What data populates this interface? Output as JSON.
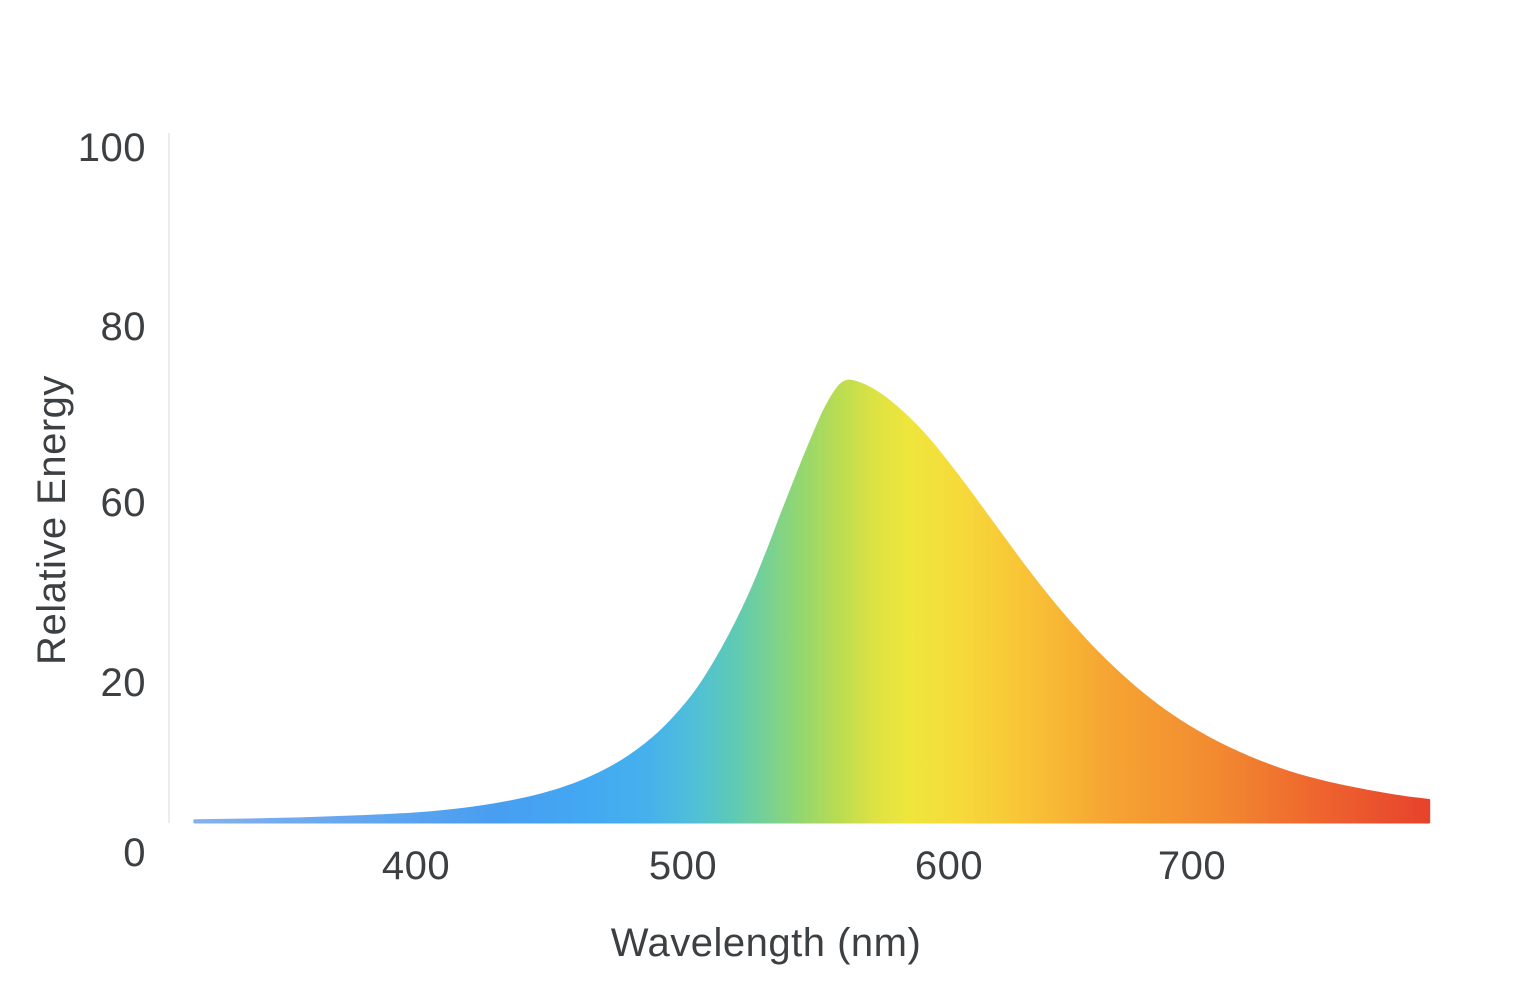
{
  "chart_data": {
    "type": "area",
    "title": "",
    "xlabel": "Wavelength (nm)",
    "ylabel": "Relative Energy",
    "x_ticks": [
      "400",
      "500",
      "600",
      "700"
    ],
    "y_ticks": [
      "100",
      "80",
      "60",
      "20",
      "0"
    ],
    "x_range_nm": [
      317,
      780
    ],
    "ylim": [
      0,
      100
    ],
    "grid": false,
    "legend": false,
    "peak": {
      "wavelength_nm": 557,
      "value": 65
    },
    "axis_line_color": "#ECECEC",
    "text_color": "#3C4043",
    "series": [
      {
        "name": "Relative Energy",
        "points": [
          [
            317,
            0.2
          ],
          [
            350,
            0.4
          ],
          [
            380,
            0.8
          ],
          [
            400,
            1.2
          ],
          [
            418,
            1.9
          ],
          [
            433,
            2.8
          ],
          [
            447,
            4.0
          ],
          [
            459,
            5.5
          ],
          [
            470,
            7.4
          ],
          [
            480,
            9.7
          ],
          [
            489,
            12.4
          ],
          [
            497,
            15.5
          ],
          [
            505,
            19.3
          ],
          [
            512,
            23.6
          ],
          [
            519,
            28.6
          ],
          [
            526,
            34.4
          ],
          [
            532,
            40.2
          ],
          [
            538,
            46.4
          ],
          [
            544,
            52.4
          ],
          [
            549,
            57.2
          ],
          [
            553,
            60.8
          ],
          [
            556,
            63.0
          ],
          [
            559,
            64.7
          ],
          [
            562,
            65.4
          ],
          [
            566,
            65.1
          ],
          [
            571,
            64.2
          ],
          [
            577,
            62.6
          ],
          [
            584,
            60.2
          ],
          [
            592,
            56.9
          ],
          [
            600,
            53.0
          ],
          [
            609,
            48.3
          ],
          [
            619,
            42.9
          ],
          [
            630,
            37.0
          ],
          [
            642,
            31.1
          ],
          [
            655,
            25.4
          ],
          [
            669,
            20.2
          ],
          [
            683,
            15.9
          ],
          [
            698,
            12.3
          ],
          [
            713,
            9.5
          ],
          [
            728,
            7.3
          ],
          [
            743,
            5.7
          ],
          [
            758,
            4.5
          ],
          [
            770,
            3.7
          ],
          [
            780,
            3.2
          ]
        ]
      }
    ],
    "gradient_stops": [
      {
        "offset": 0.0,
        "color": "#85B0EF"
      },
      {
        "offset": 0.244,
        "color": "#489EF0"
      },
      {
        "offset": 0.309,
        "color": "#43A7F3"
      },
      {
        "offset": 0.367,
        "color": "#45B1EC"
      },
      {
        "offset": 0.401,
        "color": "#4FBEDA"
      },
      {
        "offset": 0.434,
        "color": "#5CC9B8"
      },
      {
        "offset": 0.464,
        "color": "#77D193"
      },
      {
        "offset": 0.492,
        "color": "#95D76E"
      },
      {
        "offset": 0.52,
        "color": "#B7DC52"
      },
      {
        "offset": 0.55,
        "color": "#DCE243"
      },
      {
        "offset": 0.579,
        "color": "#EFE63C"
      },
      {
        "offset": 0.622,
        "color": "#F6D93A"
      },
      {
        "offset": 0.676,
        "color": "#F8C236"
      },
      {
        "offset": 0.741,
        "color": "#F6A432"
      },
      {
        "offset": 0.827,
        "color": "#F28A30"
      },
      {
        "offset": 0.913,
        "color": "#EE642E"
      },
      {
        "offset": 1.0,
        "color": "#E7422C"
      }
    ]
  }
}
